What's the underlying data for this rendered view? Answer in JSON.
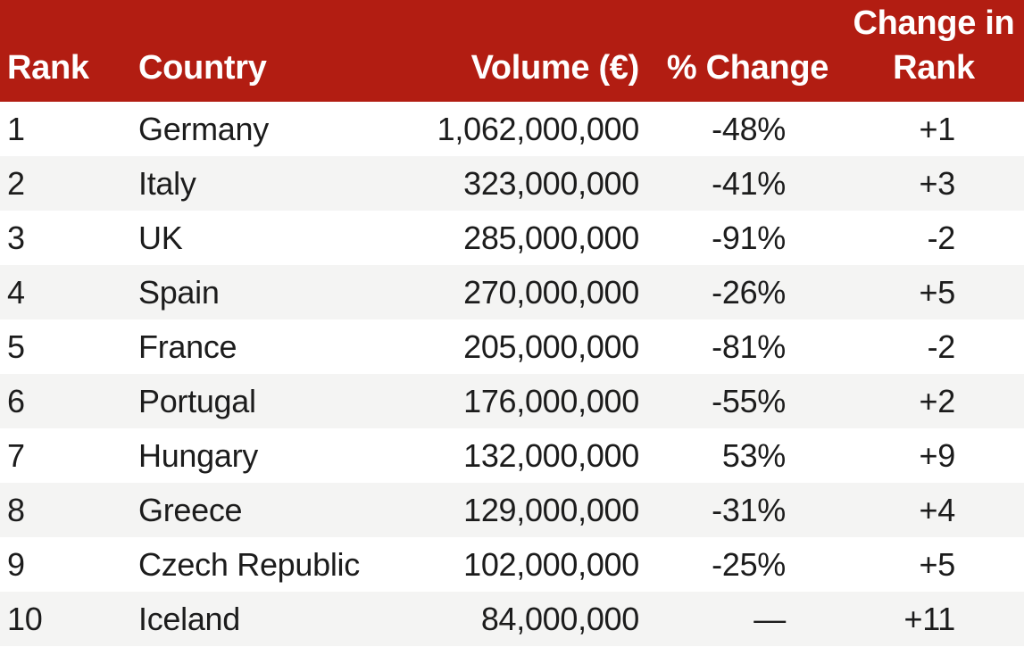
{
  "colors": {
    "header_bg": "#B21D12",
    "header_text": "#FFFFFF",
    "row_bg": "#FFFFFF",
    "row_alt_bg": "#F4F4F3",
    "body_text": "#1C1C1C"
  },
  "table": {
    "header": {
      "rank": "Rank",
      "country": "Country",
      "volume": "Volume (€)",
      "pct_change": "% Change",
      "rank_change": "Change in Rank"
    },
    "rows": [
      {
        "rank": "1",
        "country": "Germany",
        "volume": "1,062,000,000",
        "pct_change": "-48%",
        "rank_change": "+1"
      },
      {
        "rank": "2",
        "country": "Italy",
        "volume": "323,000,000",
        "pct_change": "-41%",
        "rank_change": "+3"
      },
      {
        "rank": "3",
        "country": "UK",
        "volume": "285,000,000",
        "pct_change": "-91%",
        "rank_change": "-2"
      },
      {
        "rank": "4",
        "country": "Spain",
        "volume": "270,000,000",
        "pct_change": "-26%",
        "rank_change": "+5"
      },
      {
        "rank": "5",
        "country": "France",
        "volume": "205,000,000",
        "pct_change": "-81%",
        "rank_change": "-2"
      },
      {
        "rank": "6",
        "country": "Portugal",
        "volume": "176,000,000",
        "pct_change": "-55%",
        "rank_change": "+2"
      },
      {
        "rank": "7",
        "country": "Hungary",
        "volume": "132,000,000",
        "pct_change": "53%",
        "rank_change": "+9"
      },
      {
        "rank": "8",
        "country": "Greece",
        "volume": "129,000,000",
        "pct_change": "-31%",
        "rank_change": "+4"
      },
      {
        "rank": "9",
        "country": "Czech Republic",
        "volume": "102,000,000",
        "pct_change": "-25%",
        "rank_change": "+5"
      },
      {
        "rank": "10",
        "country": "Iceland",
        "volume": "84,000,000",
        "pct_change": "—",
        "rank_change": "+11"
      }
    ]
  },
  "chart_data": {
    "type": "table",
    "title": "",
    "columns": [
      "Rank",
      "Country",
      "Volume (€)",
      "% Change",
      "Change in Rank"
    ],
    "rows": [
      [
        1,
        "Germany",
        1062000000,
        "-48%",
        "+1"
      ],
      [
        2,
        "Italy",
        323000000,
        "-41%",
        "+3"
      ],
      [
        3,
        "UK",
        285000000,
        "-91%",
        "-2"
      ],
      [
        4,
        "Spain",
        270000000,
        "-26%",
        "+5"
      ],
      [
        5,
        "France",
        205000000,
        "-81%",
        "-2"
      ],
      [
        6,
        "Portugal",
        176000000,
        "-55%",
        "+2"
      ],
      [
        7,
        "Hungary",
        132000000,
        "53%",
        "+9"
      ],
      [
        8,
        "Greece",
        129000000,
        "-31%",
        "+4"
      ],
      [
        9,
        "Czech Republic",
        102000000,
        "-25%",
        "+5"
      ],
      [
        10,
        "Iceland",
        84000000,
        "—",
        "+11"
      ]
    ],
    "layout_hints": {
      "header_style": "dark-red banded header, white bold text, bottom-aligned",
      "row_striping": "odd rows white, even rows light gray",
      "alignment": [
        "left",
        "left",
        "right",
        "right",
        "right"
      ]
    }
  }
}
